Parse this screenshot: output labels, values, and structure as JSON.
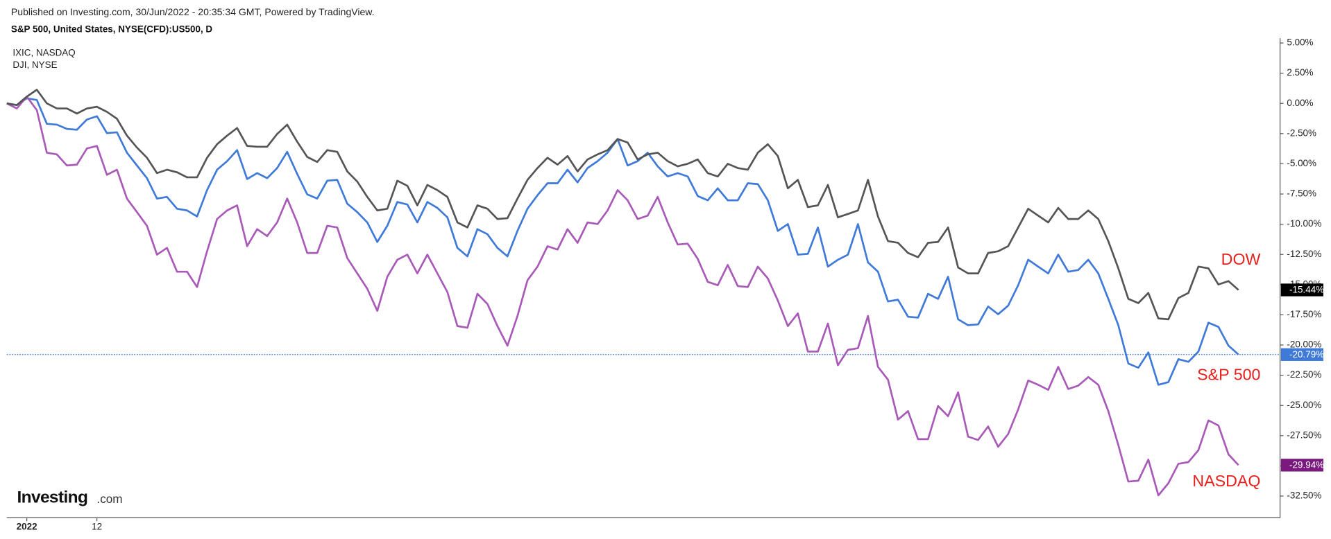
{
  "chart_data": {
    "type": "line",
    "title": "Published on Investing.com, 30/Jun/2022 - 20:35:34 GMT, Powered by TradingView.",
    "logo": {
      "brand": "Investing",
      "suffix": ".com"
    },
    "categories": [
      null,
      null,
      "2022",
      null,
      null,
      null,
      null,
      null,
      null,
      "12",
      null,
      null,
      null,
      null,
      null,
      null,
      null,
      null,
      null,
      null,
      null,
      null,
      null,
      null,
      null,
      null,
      null,
      null,
      null,
      null,
      null,
      null,
      null,
      null,
      null,
      null,
      null,
      null,
      null,
      null,
      null,
      null,
      null,
      null,
      null,
      null,
      null,
      null,
      null,
      null,
      null,
      null,
      null,
      null,
      null,
      null,
      null,
      null,
      null,
      null,
      null,
      null,
      null,
      null,
      null,
      null,
      null,
      null,
      null,
      null,
      null,
      null,
      null,
      null,
      null,
      null,
      null,
      null,
      null,
      null,
      null,
      null,
      null,
      null,
      null,
      null,
      null,
      null,
      null,
      null,
      null,
      null,
      null,
      null,
      null,
      null,
      null,
      null,
      null,
      null,
      null,
      null,
      null,
      null,
      null,
      null,
      null,
      null,
      null,
      null,
      null,
      null,
      null,
      null,
      null,
      null,
      null,
      null,
      null,
      null,
      null,
      null,
      null,
      null
    ],
    "ylim": [
      -34.3,
      5.4
    ],
    "yticks": [
      {
        "value": 5,
        "label": "5.00%"
      },
      {
        "value": 2.5,
        "label": "2.50%"
      },
      {
        "value": 0,
        "label": "0.00%"
      },
      {
        "value": -2.5,
        "label": "-2.50%"
      },
      {
        "value": -5,
        "label": "-5.00%"
      },
      {
        "value": -7.5,
        "label": "-7.50%"
      },
      {
        "value": -10,
        "label": "-10.00%"
      },
      {
        "value": -12.5,
        "label": "-12.50%"
      },
      {
        "value": -15,
        "label": "-15.00%"
      },
      {
        "value": -17.5,
        "label": "-17.50%"
      },
      {
        "value": -20,
        "label": "-20.00%"
      },
      {
        "value": -22.5,
        "label": "-22.50%"
      },
      {
        "value": -25,
        "label": "-25.00%"
      },
      {
        "value": -27.5,
        "label": "-27.50%"
      },
      {
        "value": -30,
        "label": "-30.00%"
      },
      {
        "value": -32.5,
        "label": "-32.50%"
      }
    ],
    "grid": false,
    "series": [
      {
        "name": "S&P 500, United States, NYSE(CFD):US500, D",
        "color": "#3f7ad9",
        "end_label": "-20.79%",
        "end_label_bg": "#3f7ad9",
        "guide_line": true,
        "values": [
          0,
          -0.14,
          0.42,
          0.28,
          -1.69,
          -1.76,
          -2.11,
          -2.18,
          -1.34,
          -1.06,
          -2.46,
          -2.39,
          -4.08,
          -5.14,
          -6.19,
          -7.88,
          -7.74,
          -8.72,
          -8.86,
          -9.36,
          -7.18,
          -5.49,
          -4.78,
          -3.87,
          -6.26,
          -5.77,
          -6.19,
          -5.35,
          -4.01,
          -5.84,
          -7.53,
          -7.88,
          -6.4,
          -6.33,
          -8.3,
          -9.0,
          -9.85,
          -11.47,
          -10.13,
          -8.16,
          -8.37,
          -9.85,
          -8.16,
          -8.65,
          -9.43,
          -11.96,
          -12.66,
          -10.41,
          -10.83,
          -11.96,
          -12.66,
          -10.55,
          -8.72,
          -7.6,
          -6.61,
          -6.61,
          -5.49,
          -6.54,
          -5.35,
          -4.78,
          -4.08,
          -2.95,
          -5.14,
          -4.78,
          -4.08,
          -5.21,
          -6.05,
          -5.77,
          -6.05,
          -7.67,
          -8.02,
          -7.03,
          -8.02,
          -8.02,
          -6.61,
          -6.68,
          -8.02,
          -10.55,
          -9.99,
          -12.52,
          -12.45,
          -10.27,
          -13.51,
          -12.94,
          -12.52,
          -9.99,
          -13.16,
          -13.93,
          -16.39,
          -16.25,
          -17.66,
          -17.73,
          -15.76,
          -16.18,
          -14.35,
          -17.87,
          -18.36,
          -18.29,
          -16.81,
          -17.45,
          -16.74,
          -15.05,
          -12.94,
          -13.51,
          -14.07,
          -12.52,
          -13.93,
          -13.79,
          -12.94,
          -14.07,
          -16.18,
          -18.36,
          -21.53,
          -21.88,
          -20.61,
          -23.29,
          -23.07,
          -21.17,
          -21.39,
          -20.54,
          -18.15,
          -18.5,
          -20.05,
          -20.79
        ]
      },
      {
        "name": "IXIC, NASDAQ",
        "color": "#a95ab8",
        "end_label": "-29.94%",
        "end_label_bg": "#7a1a7e",
        "guide_line": false,
        "values": [
          0,
          -0.42,
          0.56,
          -0.56,
          -4.08,
          -4.22,
          -5.14,
          -5.07,
          -3.73,
          -3.52,
          -5.91,
          -5.49,
          -7.88,
          -9.0,
          -10.13,
          -12.52,
          -11.96,
          -13.93,
          -13.93,
          -15.2,
          -12.24,
          -9.57,
          -8.86,
          -8.44,
          -11.82,
          -10.41,
          -10.98,
          -9.85,
          -7.88,
          -9.85,
          -12.38,
          -12.38,
          -10.13,
          -10.27,
          -12.8,
          -14.07,
          -15.34,
          -17.17,
          -14.35,
          -12.94,
          -12.52,
          -14.07,
          -12.52,
          -14.07,
          -15.62,
          -18.43,
          -18.57,
          -15.76,
          -16.6,
          -18.43,
          -20.05,
          -17.59,
          -14.64,
          -13.51,
          -11.82,
          -12.1,
          -10.41,
          -11.54,
          -9.85,
          -9.99,
          -8.86,
          -7.18,
          -8.02,
          -9.57,
          -9.29,
          -7.74,
          -9.85,
          -11.68,
          -11.61,
          -12.87,
          -14.77,
          -15.05,
          -13.37,
          -15.12,
          -15.2,
          -13.51,
          -14.49,
          -16.32,
          -18.43,
          -17.38,
          -20.54,
          -20.54,
          -18.22,
          -21.67,
          -20.4,
          -20.26,
          -17.59,
          -21.81,
          -22.87,
          -26.17,
          -25.47,
          -27.79,
          -27.79,
          -25.05,
          -25.89,
          -23.92,
          -27.58,
          -27.86,
          -26.74,
          -28.42,
          -27.37,
          -25.33,
          -22.94,
          -23.29,
          -23.71,
          -21.81,
          -23.64,
          -23.36,
          -22.65,
          -23.29,
          -25.47,
          -28.28,
          -31.3,
          -31.23,
          -29.48,
          -32.44,
          -31.44,
          -29.83,
          -29.69,
          -28.7,
          -26.24,
          -26.66,
          -29.05,
          -29.94
        ]
      },
      {
        "name": "DJI, NYSE",
        "color": "#555555",
        "end_label": "-15.44%",
        "end_label_bg": "#000000",
        "guide_line": false,
        "values": [
          0,
          -0.14,
          0.56,
          1.13,
          0,
          -0.42,
          -0.42,
          -0.84,
          -0.42,
          -0.28,
          -0.7,
          -1.27,
          -2.67,
          -3.66,
          -4.5,
          -5.77,
          -5.49,
          -5.7,
          -6.12,
          -6.12,
          -4.5,
          -3.38,
          -2.67,
          -2.04,
          -3.52,
          -3.59,
          -3.59,
          -2.53,
          -1.76,
          -3.17,
          -4.43,
          -4.85,
          -3.87,
          -4.01,
          -5.63,
          -6.47,
          -7.74,
          -8.86,
          -8.72,
          -6.4,
          -6.82,
          -8.44,
          -6.75,
          -7.18,
          -7.74,
          -9.85,
          -10.27,
          -8.44,
          -8.72,
          -9.57,
          -9.5,
          -7.88,
          -6.33,
          -5.35,
          -4.5,
          -5.07,
          -4.36,
          -5.63,
          -4.64,
          -4.22,
          -3.87,
          -2.95,
          -3.24,
          -4.64,
          -4.22,
          -4.08,
          -4.78,
          -5.21,
          -5.0,
          -4.64,
          -5.77,
          -6.05,
          -5.0,
          -5.35,
          -5.49,
          -4.08,
          -3.38,
          -4.36,
          -7.03,
          -6.33,
          -8.58,
          -8.44,
          -6.75,
          -9.43,
          -9.15,
          -8.86,
          -6.33,
          -9.36,
          -11.4,
          -11.54,
          -12.38,
          -12.73,
          -11.54,
          -11.47,
          -10.27,
          -13.58,
          -14.07,
          -14.07,
          -12.38,
          -12.24,
          -11.82,
          -10.27,
          -8.72,
          -9.29,
          -9.85,
          -8.65,
          -9.57,
          -9.57,
          -8.86,
          -9.57,
          -11.4,
          -13.65,
          -16.18,
          -16.53,
          -15.69,
          -17.8,
          -17.87,
          -16.11,
          -15.69,
          -13.51,
          -13.65,
          -14.99,
          -14.71,
          -15.44
        ]
      }
    ],
    "annotations": [
      {
        "text": "DOW",
        "color": "#e8201c",
        "series": 2
      },
      {
        "text": "S&P 500",
        "color": "#e8201c",
        "series": 0
      },
      {
        "text": "NASDAQ",
        "color": "#e8201c",
        "series": 1
      }
    ]
  }
}
